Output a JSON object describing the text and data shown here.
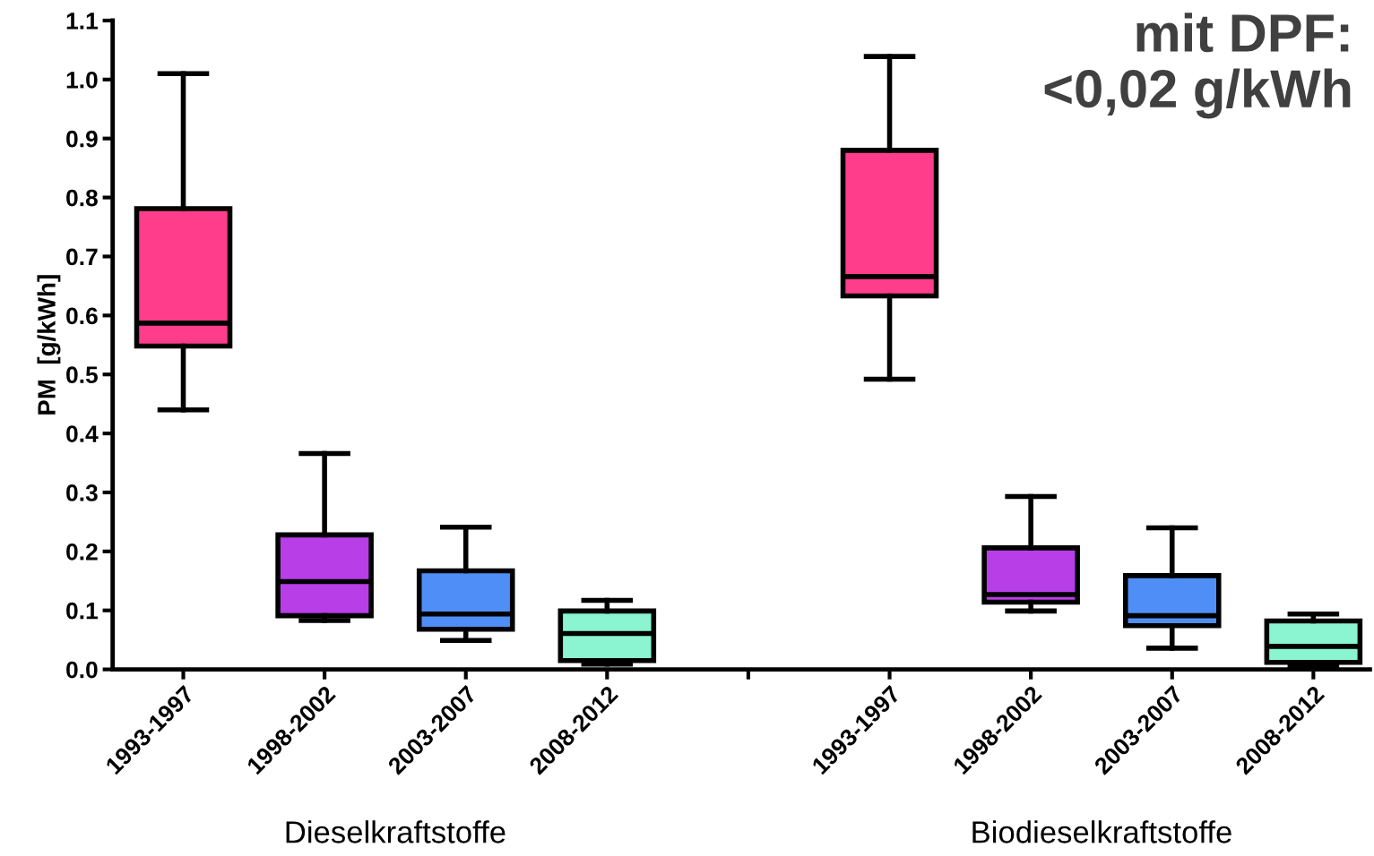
{
  "chart_data": {
    "type": "box",
    "ylabel": "PM  [g/kWh]",
    "categories": [
      "1993-1997",
      "1998-2002",
      "2003-2007",
      "2008-2012",
      null,
      "1993-1997",
      "1998-2002",
      "2003-2007",
      "2008-2012"
    ],
    "boxes": [
      {
        "low": 0.44,
        "q1": 0.548,
        "median": 0.587,
        "q3": 0.781,
        "high": 1.01
      },
      {
        "low": 0.083,
        "q1": 0.091,
        "median": 0.149,
        "q3": 0.228,
        "high": 0.366
      },
      {
        "low": 0.049,
        "q1": 0.068,
        "median": 0.094,
        "q3": 0.167,
        "high": 0.241
      },
      {
        "low": 0.009,
        "q1": 0.015,
        "median": 0.061,
        "q3": 0.099,
        "high": 0.117
      },
      null,
      {
        "low": 0.492,
        "q1": 0.633,
        "median": 0.666,
        "q3": 0.88,
        "high": 1.039
      },
      {
        "low": 0.099,
        "q1": 0.114,
        "median": 0.127,
        "q3": 0.206,
        "high": 0.293
      },
      {
        "low": 0.036,
        "q1": 0.074,
        "median": 0.091,
        "q3": 0.159,
        "high": 0.24
      },
      {
        "low": 0.005,
        "q1": 0.012,
        "median": 0.039,
        "q3": 0.082,
        "high": 0.094
      }
    ],
    "colors": [
      "#ff3d8a",
      "#b83ee8",
      "#4f8ef7",
      "#8af5d0",
      null,
      "#ff3d8a",
      "#b83ee8",
      "#4f8ef7",
      "#8af5d0"
    ],
    "ylim": [
      0,
      1.1
    ],
    "yticks": [
      {
        "value": 0,
        "label": "0.0"
      },
      {
        "value": 0.1,
        "label": "0.1"
      },
      {
        "value": 0.2,
        "label": "0.2"
      },
      {
        "value": 0.3,
        "label": "0.3"
      },
      {
        "value": 0.4,
        "label": "0.4"
      },
      {
        "value": 0.5,
        "label": "0.5"
      },
      {
        "value": 0.6,
        "label": "0.6"
      },
      {
        "value": 0.7,
        "label": "0.7"
      },
      {
        "value": 0.8,
        "label": "0.8"
      },
      {
        "value": 0.9,
        "label": "0.9"
      },
      {
        "value": 1.0,
        "label": "1.0"
      },
      {
        "value": 1.1,
        "label": "1.1"
      }
    ],
    "grid": false,
    "annotations": [
      "Dieselkraftstoffe",
      "Biodieselkraftstoffe",
      "mit DPF:\n<0,02 g/kWh"
    ]
  }
}
